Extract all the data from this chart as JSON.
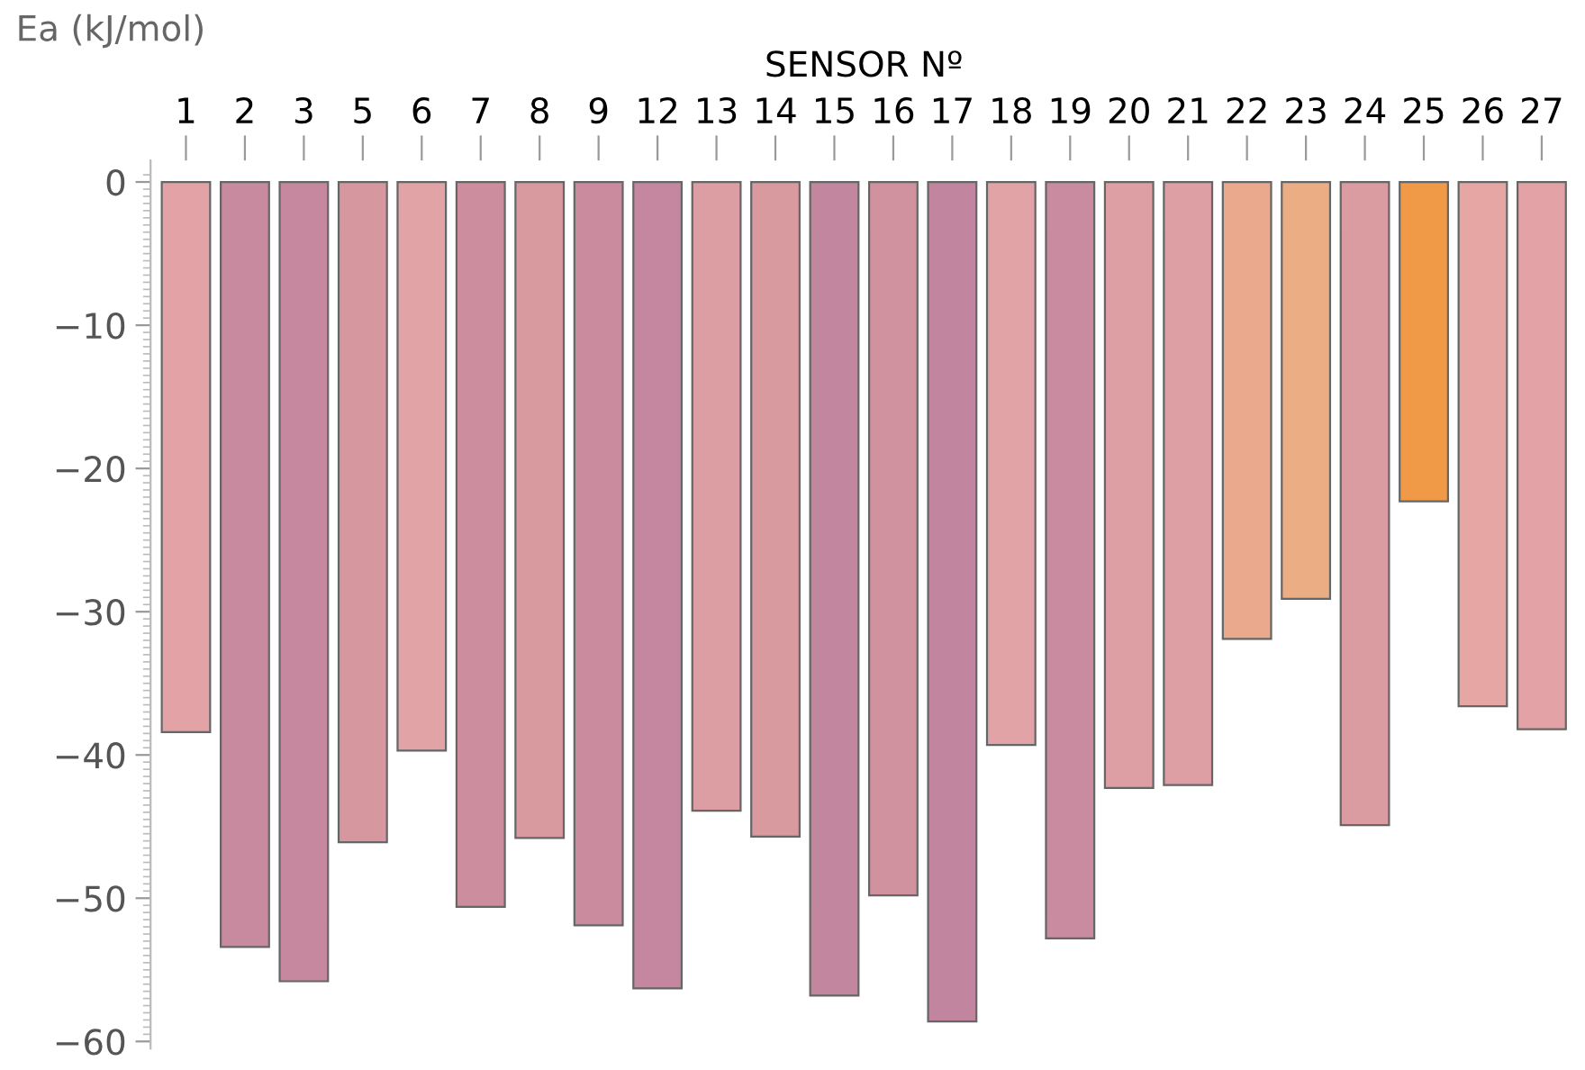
{
  "chart_data": {
    "type": "bar",
    "xlabel": "SENSOR Nº",
    "ylabel": "Ea (kJ/mol)",
    "categories": [
      "1",
      "2",
      "3",
      "5",
      "6",
      "7",
      "8",
      "9",
      "12",
      "13",
      "14",
      "15",
      "16",
      "17",
      "18",
      "19",
      "20",
      "21",
      "22",
      "23",
      "24",
      "25",
      "26",
      "27"
    ],
    "values": [
      -38.4,
      -53.4,
      -55.8,
      -46.1,
      -39.7,
      -50.6,
      -45.8,
      -51.9,
      -56.3,
      -43.9,
      -45.7,
      -56.8,
      -49.8,
      -58.6,
      -39.3,
      -52.8,
      -42.3,
      -42.1,
      -31.9,
      -29.1,
      -44.9,
      -22.3,
      -36.6,
      -38.2
    ],
    "colors": [
      "#e3a3a6",
      "#c88a9e",
      "#c5889f",
      "#d6979f",
      "#e2a3a6",
      "#cc8d9f",
      "#d8999f",
      "#ca8b9f",
      "#c4879f",
      "#dc9da3",
      "#d8999f",
      "#c3869f",
      "#d0929f",
      "#c1859f",
      "#e2a3a6",
      "#c98b9f",
      "#dd9ea4",
      "#dd9ea4",
      "#eaa98c",
      "#ebae84",
      "#da9ba1",
      "#f09a48",
      "#e6a7a4",
      "#e3a3a6"
    ],
    "ylim": [
      -60.5,
      1.5
    ],
    "yticks": [
      {
        "value": -60,
        "label": "−60"
      },
      {
        "value": -50,
        "label": "−50"
      },
      {
        "value": -40,
        "label": "−40"
      },
      {
        "value": -30,
        "label": "−30"
      },
      {
        "value": -20,
        "label": "−20"
      },
      {
        "value": -10,
        "label": "−10"
      },
      0
    ],
    "grid": false,
    "legend": false
  }
}
